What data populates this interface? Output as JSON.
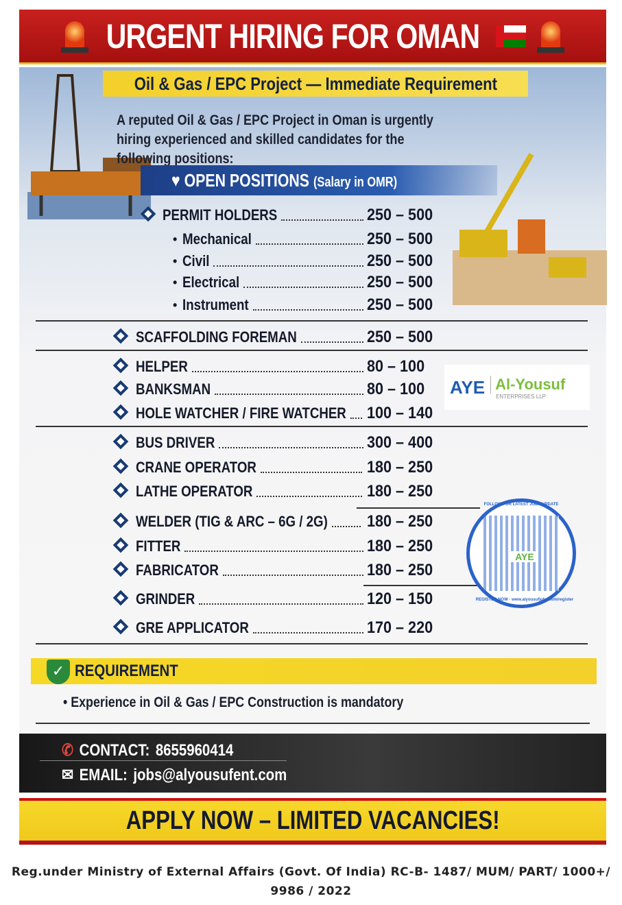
{
  "header": {
    "title": "URGENT HIRING FOR OMAN",
    "icons": [
      "siren-icon",
      "oman-flag-icon",
      "siren-icon"
    ]
  },
  "subtitle": "Oil & Gas / EPC Project — Immediate Requirement",
  "intro": "A reputed Oil & Gas / EPC Project in Oman is urgently hiring experienced and skilled candidates for the following positions:",
  "open_positions": {
    "title": "OPEN POSITIONS",
    "note": "(Salary in OMR)"
  },
  "positions": [
    {
      "label": "PERMIT HOLDERS",
      "salary": "250 – 500",
      "level": "group"
    },
    {
      "label": "Mechanical",
      "salary": "250 – 500",
      "level": "sub"
    },
    {
      "label": "Civil",
      "salary": "250 – 500",
      "level": "sub"
    },
    {
      "label": "Electrical",
      "salary": "250 – 500",
      "level": "sub"
    },
    {
      "label": "Instrument",
      "salary": "250 – 500",
      "level": "sub"
    },
    {
      "label": "SCAFFOLDING FOREMAN",
      "salary": "250 – 500",
      "level": "main"
    },
    {
      "label": "HELPER",
      "salary": "80 – 100",
      "level": "main"
    },
    {
      "label": "BANKSMAN",
      "salary": "80 – 100",
      "level": "main"
    },
    {
      "label": "HOLE WATCHER / FIRE WATCHER",
      "salary": "100 – 140",
      "level": "main"
    },
    {
      "label": "BUS DRIVER",
      "salary": "300 – 400",
      "level": "main"
    },
    {
      "label": "CRANE OPERATOR",
      "salary": "180 – 250",
      "level": "main"
    },
    {
      "label": "LATHE OPERATOR",
      "salary": "180 – 250",
      "level": "main"
    },
    {
      "label": "WELDER (TIG & ARC – 6G / 2G)",
      "salary": "180 – 250",
      "level": "main"
    },
    {
      "label": "FITTER",
      "salary": "180 – 250",
      "level": "main"
    },
    {
      "label": "FABRICATOR",
      "salary": "180 – 250",
      "level": "main"
    },
    {
      "label": "GRINDER",
      "salary": "120 – 150",
      "level": "main"
    },
    {
      "label": "GRE APPLICATOR",
      "salary": "170 – 220",
      "level": "main"
    }
  ],
  "logo": {
    "mark": "AYE",
    "name": "Al-Yousuf",
    "sub": "ENTERPRISES LLP"
  },
  "qr": {
    "top_text": "FOLLOW FOR LATEST JOBS UPDATE",
    "bottom_text": "REGISTER NOW · www.alyousufjobs.com/register",
    "center": "AYE"
  },
  "requirement": {
    "title": "REQUIREMENT",
    "items": [
      "Experience in Oil & Gas / EPC Construction is mandatory"
    ]
  },
  "contact": {
    "phone_label": "CONTACT:",
    "phone": "8655960414",
    "email_label": "EMAIL:",
    "email": "jobs@alyousufent.com"
  },
  "cta": "APPLY NOW – LIMITED VACANCIES!",
  "footer": {
    "line1": "Reg.under Ministry of External Affairs (Govt. Of India) RC-B- 1487/ MUM/ PART/ 1000+/",
    "line2": "9986 / 2022"
  },
  "colors": {
    "red": "#b5141a",
    "yellow": "#f3d02a",
    "navy": "#1d3f86",
    "green": "#2a8a3a"
  }
}
